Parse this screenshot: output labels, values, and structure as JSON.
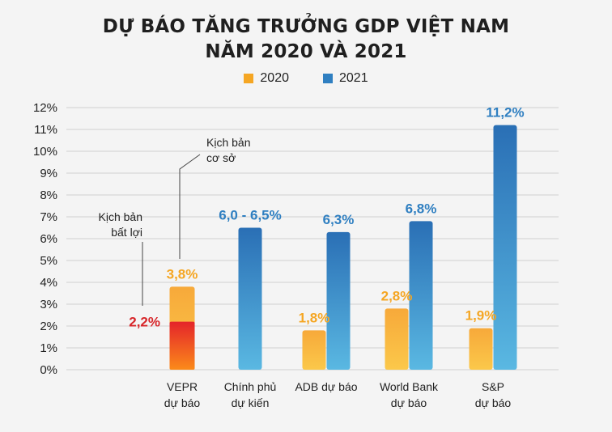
{
  "chart_data": {
    "type": "bar",
    "title": "DỰ BÁO TĂNG TRƯỞNG GDP VIỆT NAM",
    "title_line2": "NĂM 2020 VÀ 2021",
    "yticks": [
      "0%",
      "1%",
      "2%",
      "3%",
      "4%",
      "5%",
      "6%",
      "7%",
      "8%",
      "9%",
      "10%",
      "11%",
      "12%"
    ],
    "ylim": [
      0,
      12
    ],
    "grid": true,
    "legend_position": "top-center",
    "categories": [
      [
        "VEPR",
        "dự báo"
      ],
      [
        "Chính phủ",
        "dự kiến"
      ],
      [
        "ADB dự báo"
      ],
      [
        "World Bank",
        "dự báo"
      ],
      [
        "S&P",
        "dự báo"
      ]
    ],
    "series": [
      {
        "name": "2020",
        "color": "#f5a623",
        "values": [
          3.8,
          null,
          1.8,
          2.8,
          1.9
        ],
        "labels": [
          "3,8%",
          "",
          "1,8%",
          "2,8%",
          "1,9%"
        ]
      },
      {
        "name": "2021",
        "color": "#2f7fc1",
        "values": [
          null,
          6.5,
          6.3,
          6.8,
          11.2
        ],
        "labels": [
          "",
          "6,0 - 6,5%",
          "6,3%",
          "6,8%",
          "11,2%"
        ]
      }
    ],
    "vepr_adverse": {
      "value": 2.2,
      "label": "2,2%",
      "color": "#d7262a"
    },
    "annotations": [
      {
        "lines": [
          "Kịch bản",
          "cơ sở"
        ]
      },
      {
        "lines": [
          "Kịch bản",
          "bất lợi"
        ]
      }
    ]
  },
  "colors": {
    "orange": "#f5a623",
    "blue": "#2f7fc1",
    "red": "#d7262a"
  }
}
